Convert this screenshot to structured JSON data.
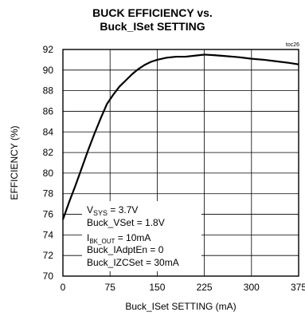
{
  "chart_data": {
    "type": "line",
    "title": "BUCK EFFICIENCY vs.",
    "subtitle": "Buck_ISet SETTING",
    "figure_code": "toc26",
    "xlabel": "Buck_ISet SETTING (mA)",
    "ylabel": "EFFICIENCY (%)",
    "xlim": [
      0,
      375
    ],
    "ylim": [
      70,
      92
    ],
    "x_ticks": [
      "0",
      "75",
      "150",
      "225",
      "300",
      "375"
    ],
    "x_tick_values": [
      0,
      75,
      150,
      225,
      300,
      375
    ],
    "y_ticks": [
      "70",
      "72",
      "74",
      "76",
      "78",
      "80",
      "82",
      "84",
      "86",
      "88",
      "90",
      "92"
    ],
    "y_tick_values": [
      70,
      72,
      74,
      76,
      78,
      80,
      82,
      84,
      86,
      88,
      90,
      92
    ],
    "grid": true,
    "series": [
      {
        "x": [
          0,
          10,
          20,
          30,
          40,
          50,
          60,
          70,
          80,
          90,
          100,
          110,
          120,
          130,
          140,
          150,
          165,
          180,
          195,
          210,
          225,
          240,
          260,
          280,
          300,
          320,
          340,
          360,
          375
        ],
        "y": [
          75.5,
          77.2,
          78.8,
          80.5,
          82.2,
          83.8,
          85.3,
          86.7,
          87.6,
          88.4,
          89.0,
          89.6,
          90.1,
          90.5,
          90.8,
          91.0,
          91.2,
          91.3,
          91.3,
          91.4,
          91.5,
          91.45,
          91.35,
          91.25,
          91.1,
          91.0,
          90.85,
          90.7,
          90.55
        ]
      }
    ],
    "annotations": {
      "vsys_main": "V",
      "vsys_sub": "SYS",
      "vsys_rest": " = 3.7V",
      "buck_vset": "Buck_VSet = 1.8V",
      "ibk_main": "I",
      "ibk_sub": "BK_OUT",
      "ibk_rest": " = 10mA",
      "iadpt": "Buck_IAdptEn = 0",
      "izc": "Buck_IZCSet = 30mA"
    }
  }
}
